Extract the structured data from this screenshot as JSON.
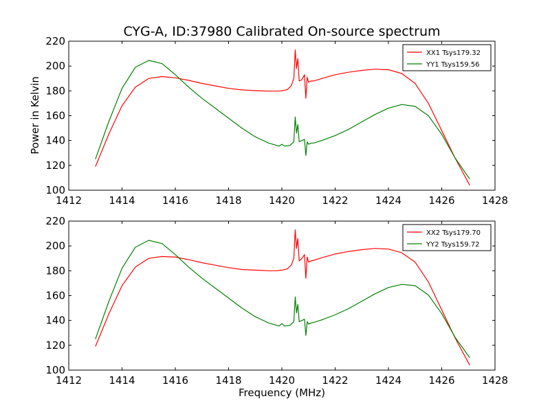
{
  "figure": {
    "title": "CYG-A, ID:37980 Calibrated On-source spectrum",
    "ylabel": "Power in Kelvin",
    "xlabel": "Frequency (MHz)"
  },
  "colors": {
    "red": "#ff0000",
    "green": "#008000"
  },
  "chart_data": [
    {
      "type": "line",
      "title": "CYG-A, ID:37980 Calibrated On-source spectrum",
      "xlabel": "",
      "ylabel": "Power in Kelvin",
      "xlim": [
        1412,
        1428
      ],
      "ylim": [
        100,
        220
      ],
      "xticks": [
        "1412",
        "1414",
        "1416",
        "1418",
        "1420",
        "1422",
        "1424",
        "1426",
        "1428"
      ],
      "yticks": [
        "100",
        "120",
        "140",
        "160",
        "180",
        "200",
        "220"
      ],
      "legend_position": "top-right",
      "series": [
        {
          "name": "XX1 Tsys179.32",
          "color": "#ff0000",
          "x": [
            1413.0,
            1413.5,
            1414.0,
            1414.5,
            1415.0,
            1415.5,
            1416.0,
            1416.5,
            1417.0,
            1417.5,
            1418.0,
            1418.5,
            1419.0,
            1419.5,
            1419.8,
            1420.0,
            1420.2,
            1420.35,
            1420.45,
            1420.5,
            1420.55,
            1420.6,
            1420.65,
            1420.75,
            1420.85,
            1420.9,
            1420.95,
            1421.0,
            1421.1,
            1421.2,
            1421.5,
            1422.0,
            1422.5,
            1423.0,
            1423.5,
            1424.0,
            1424.5,
            1425.0,
            1425.5,
            1426.0,
            1426.5,
            1427.05
          ],
          "y": [
            119,
            145,
            168,
            183,
            190,
            191.5,
            190.5,
            188.5,
            186,
            184,
            182,
            180.8,
            180.2,
            179.8,
            179.8,
            180,
            181,
            184,
            190,
            213,
            198,
            206,
            188,
            189,
            193,
            174,
            191,
            187,
            188,
            188,
            190,
            193,
            195,
            196.5,
            197.5,
            197,
            194,
            186,
            170,
            148,
            126,
            104
          ]
        },
        {
          "name": "YY1 Tsys159.56",
          "color": "#008000",
          "x": [
            1413.0,
            1413.5,
            1414.0,
            1414.5,
            1415.0,
            1415.5,
            1416.0,
            1416.5,
            1417.0,
            1417.5,
            1418.0,
            1418.5,
            1419.0,
            1419.5,
            1419.9,
            1420.0,
            1420.1,
            1420.3,
            1420.45,
            1420.5,
            1420.55,
            1420.6,
            1420.65,
            1420.75,
            1420.85,
            1420.9,
            1420.95,
            1421.0,
            1421.1,
            1421.2,
            1421.5,
            1422.0,
            1422.5,
            1423.0,
            1423.5,
            1424.0,
            1424.5,
            1425.0,
            1425.5,
            1426.0,
            1426.5,
            1427.05
          ],
          "y": [
            125,
            155,
            182,
            199,
            204.5,
            202,
            193,
            183,
            174,
            166,
            158,
            150,
            143,
            138,
            135.5,
            137,
            135.5,
            136,
            139,
            159,
            146,
            153,
            139,
            140,
            141,
            128,
            139,
            137,
            138,
            138,
            140,
            144,
            149,
            155,
            161,
            166,
            169,
            167.5,
            160,
            145,
            126,
            109
          ]
        }
      ]
    },
    {
      "type": "line",
      "title": "",
      "xlabel": "Frequency (MHz)",
      "ylabel": "",
      "xlim": [
        1412,
        1428
      ],
      "ylim": [
        100,
        220
      ],
      "xticks": [
        "1412",
        "1414",
        "1416",
        "1418",
        "1420",
        "1422",
        "1424",
        "1426",
        "1428"
      ],
      "yticks": [
        "100",
        "120",
        "140",
        "160",
        "180",
        "200",
        "220"
      ],
      "legend_position": "top-right",
      "series": [
        {
          "name": "XX2 Tsys179.70",
          "color": "#ff0000",
          "x": [
            1413.0,
            1413.5,
            1414.0,
            1414.5,
            1415.0,
            1415.5,
            1416.0,
            1416.5,
            1417.0,
            1417.5,
            1418.0,
            1418.5,
            1419.0,
            1419.5,
            1419.8,
            1420.0,
            1420.2,
            1420.35,
            1420.45,
            1420.5,
            1420.55,
            1420.6,
            1420.65,
            1420.75,
            1420.85,
            1420.9,
            1420.95,
            1421.0,
            1421.1,
            1421.2,
            1421.5,
            1422.0,
            1422.5,
            1423.0,
            1423.5,
            1424.0,
            1424.5,
            1425.0,
            1425.5,
            1426.0,
            1426.5,
            1427.05
          ],
          "y": [
            119,
            145,
            168,
            183,
            190,
            191.5,
            191,
            189,
            186.5,
            184.5,
            182.5,
            181,
            180.5,
            180,
            180,
            180.5,
            181.5,
            184.5,
            190,
            213,
            198,
            206,
            188,
            190,
            193,
            174,
            191,
            187,
            188,
            188.5,
            190.5,
            193.5,
            195.5,
            197,
            198,
            197.5,
            194.5,
            187,
            171,
            148.5,
            126,
            104
          ]
        },
        {
          "name": "YY2 Tsys159.72",
          "color": "#008000",
          "x": [
            1413.0,
            1413.5,
            1414.0,
            1414.5,
            1415.0,
            1415.5,
            1416.0,
            1416.5,
            1417.0,
            1417.5,
            1418.0,
            1418.5,
            1419.0,
            1419.5,
            1419.9,
            1420.0,
            1420.1,
            1420.3,
            1420.45,
            1420.5,
            1420.55,
            1420.6,
            1420.65,
            1420.75,
            1420.85,
            1420.9,
            1420.95,
            1421.0,
            1421.1,
            1421.2,
            1421.5,
            1422.0,
            1422.5,
            1423.0,
            1423.5,
            1424.0,
            1424.5,
            1425.0,
            1425.5,
            1426.0,
            1426.5,
            1427.05
          ],
          "y": [
            125,
            155,
            182,
            199,
            204.5,
            202,
            193,
            183,
            174,
            166,
            158,
            150,
            143,
            138,
            135.5,
            137.5,
            135.5,
            136,
            139,
            159,
            146,
            153,
            139,
            140,
            141,
            128,
            139,
            137,
            138,
            138.5,
            140.5,
            144.5,
            149.5,
            155.5,
            161.5,
            166.5,
            169,
            168,
            160.5,
            145.5,
            126.5,
            110
          ]
        }
      ]
    }
  ]
}
